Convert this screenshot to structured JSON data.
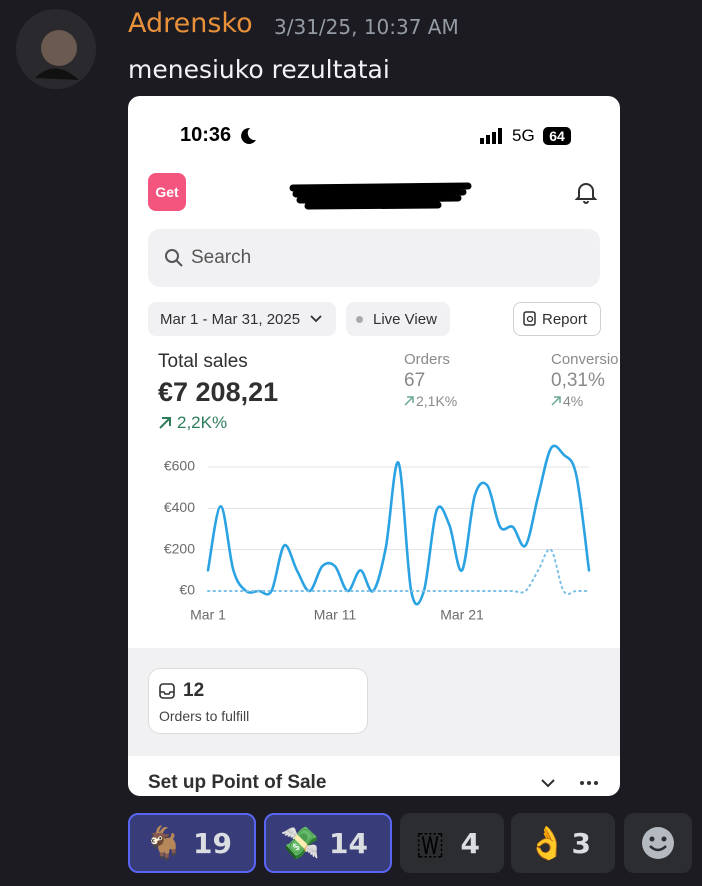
{
  "message": {
    "author": "Adrensko",
    "timestamp": "3/31/25, 10:37 AM",
    "text": "menesiuko rezultatai"
  },
  "screenshot": {
    "status_bar": {
      "time": "10:36",
      "network": "5G",
      "battery": "64"
    },
    "header": {
      "button": "Get"
    },
    "search": {
      "placeholder": "Search"
    },
    "filters": {
      "date_range": "Mar 1 - Mar 31, 2025",
      "live_view": "Live View",
      "report": "Report"
    },
    "metrics": [
      {
        "label": "Total sales",
        "value": "€7 208,21",
        "change": "2,2K%"
      },
      {
        "label": "Orders",
        "value": "67",
        "change": "2,1K%"
      },
      {
        "label": "Conversio",
        "value": "0,31%",
        "change": "4%"
      }
    ],
    "orders_card": {
      "count": "12",
      "label": "Orders to fulfill"
    },
    "section": {
      "title": "Set up Point of Sale"
    }
  },
  "chart_data": {
    "type": "line",
    "x": [
      1,
      2,
      3,
      4,
      5,
      6,
      7,
      8,
      9,
      10,
      11,
      12,
      13,
      14,
      15,
      16,
      17,
      18,
      19,
      20,
      21,
      22,
      23,
      24,
      25,
      26,
      27,
      28,
      29,
      30,
      31
    ],
    "xlim": [
      1,
      31
    ],
    "xticks": [
      {
        "value": 1,
        "label": "Mar 1"
      },
      {
        "value": 11,
        "label": "Mar 11"
      },
      {
        "value": 21,
        "label": "Mar 21"
      }
    ],
    "ylim": [
      0,
      700
    ],
    "yticks": [
      {
        "value": 0,
        "label": "€0"
      },
      {
        "value": 200,
        "label": "€200"
      },
      {
        "value": 400,
        "label": "€400"
      },
      {
        "value": 600,
        "label": "€600"
      }
    ],
    "grid": true,
    "series": [
      {
        "color": "#2ba3e3",
        "values": [
          100,
          410,
          100,
          0,
          0,
          0,
          220,
          100,
          0,
          120,
          120,
          0,
          100,
          0,
          210,
          620,
          0,
          0,
          390,
          320,
          100,
          460,
          510,
          310,
          310,
          220,
          460,
          690,
          660,
          560,
          100
        ]
      },
      {
        "color": "#7cc0e6",
        "line_style": "dotted",
        "values": [
          0,
          0,
          0,
          0,
          0,
          0,
          0,
          0,
          0,
          0,
          0,
          0,
          0,
          0,
          0,
          0,
          0,
          0,
          0,
          0,
          0,
          0,
          0,
          0,
          0,
          0,
          100,
          200,
          0,
          0,
          0
        ]
      }
    ]
  },
  "reactions": [
    {
      "emoji": "🐐",
      "count": 19,
      "selected": true
    },
    {
      "emoji": "💸",
      "count": 14,
      "selected": true
    },
    {
      "emoji": "🇼",
      "count": 4,
      "selected": false
    },
    {
      "emoji": "👌",
      "count": 3,
      "selected": false
    }
  ]
}
